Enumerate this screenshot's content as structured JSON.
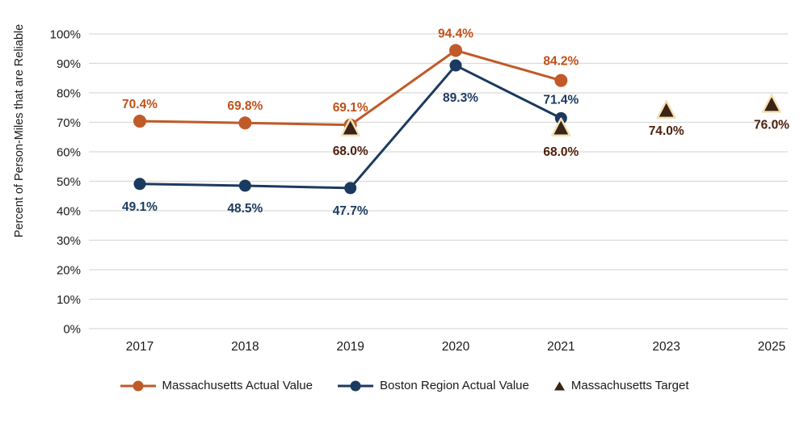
{
  "page": {
    "background": "#ffffff"
  },
  "chart_data": {
    "type": "line",
    "title": "",
    "xlabel": "",
    "ylabel": "Percent of Person-Miles that are Reliable",
    "categories": [
      "2017",
      "2018",
      "2019",
      "2020",
      "2021",
      "2023",
      "2025"
    ],
    "y_ticks": [
      "0%",
      "10%",
      "20%",
      "30%",
      "40%",
      "50%",
      "60%",
      "70%",
      "80%",
      "90%",
      "100%"
    ],
    "ylim": [
      0,
      100
    ],
    "grid": "horizontal",
    "legend_position": "bottom",
    "colors": {
      "grid": "#d9d9d9",
      "axis_text": "#1a1a1a",
      "background": "#ffffff"
    },
    "series": [
      {
        "name": "Massachusetts Actual Value",
        "marker": "circle",
        "marker_radius": 8,
        "line": true,
        "color": "#c05a28",
        "label_color": "#c0511a",
        "values": [
          70.4,
          69.8,
          69.1,
          94.4,
          84.2,
          null,
          null
        ],
        "labels": [
          "70.4%",
          "69.8%",
          "69.1%",
          "94.4%",
          "84.2%",
          null,
          null
        ],
        "label_offsets": [
          [
            0,
            -16
          ],
          [
            0,
            -16
          ],
          [
            0,
            -17
          ],
          [
            0,
            -16
          ],
          [
            0,
            -19
          ],
          null,
          null
        ]
      },
      {
        "name": "Boston Region Actual Value",
        "marker": "circle",
        "marker_radius": 7.5,
        "line": true,
        "color": "#1b3a5f",
        "label_color": "#1b3a5f",
        "values": [
          49.1,
          48.5,
          47.7,
          89.3,
          71.4,
          null,
          null
        ],
        "labels": [
          "49.1%",
          "48.5%",
          "47.7%",
          "89.3%",
          "71.4%",
          null,
          null
        ],
        "label_offsets": [
          [
            0,
            33
          ],
          [
            0,
            33
          ],
          [
            0,
            33
          ],
          [
            6,
            45
          ],
          [
            0,
            -18
          ],
          null,
          null
        ]
      },
      {
        "name": "Massachusetts Target",
        "marker": "triangle",
        "line": false,
        "color": "#3b2415",
        "marker_stroke": "#f5e3b8",
        "label_color": "#4e1f0d",
        "values": [
          null,
          null,
          68.0,
          null,
          68.0,
          74.0,
          76.0
        ],
        "labels": [
          null,
          null,
          "68.0%",
          null,
          "68.0%",
          "74.0%",
          "76.0%"
        ],
        "label_offsets": [
          null,
          null,
          [
            0,
            33
          ],
          null,
          [
            0,
            34
          ],
          [
            0,
            30
          ],
          [
            0,
            30
          ]
        ]
      }
    ]
  }
}
